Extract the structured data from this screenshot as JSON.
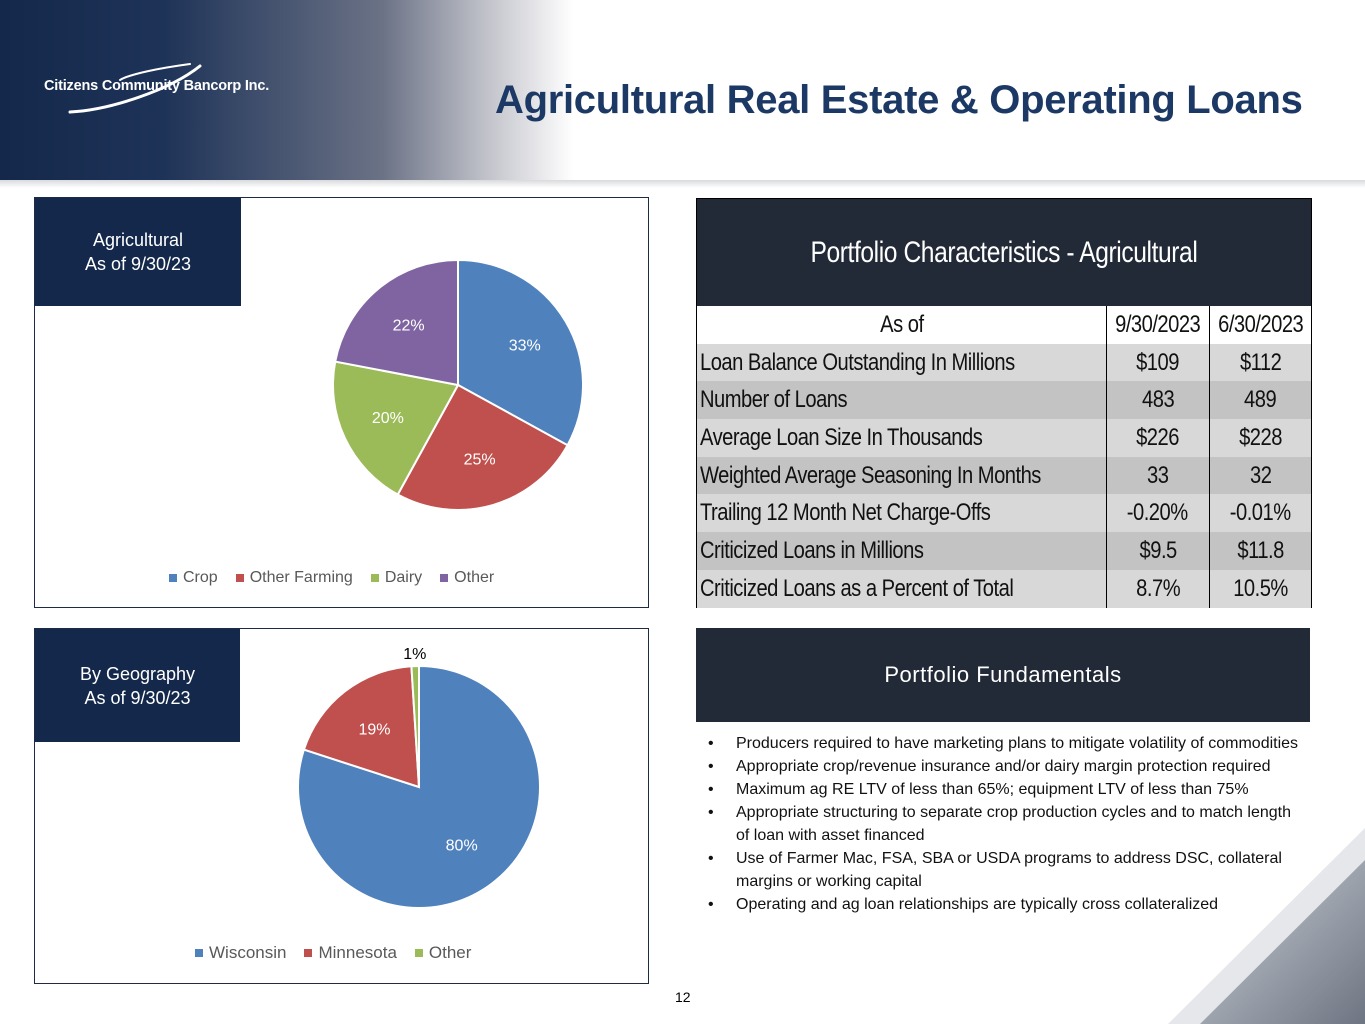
{
  "brand": {
    "logo_text": "Citizens Community Bancorp Inc."
  },
  "page": {
    "title": "Agricultural Real Estate & Operating Loans",
    "number": "12"
  },
  "colors": {
    "navy": "#13284a",
    "dark_panel": "#222a38",
    "title_blue": "#1c3864"
  },
  "chart_data": [
    {
      "type": "pie",
      "title": "Agricultural\nAs of 9/30/23",
      "title_lines": [
        "Agricultural",
        "As of 9/30/23"
      ],
      "categories": [
        "Crop",
        "Other Farming",
        "Dairy",
        "Other"
      ],
      "values": [
        33,
        25,
        20,
        22
      ],
      "labels": [
        "33%",
        "25%",
        "20%",
        "22%"
      ],
      "colors": [
        "#4f81bd",
        "#c0504d",
        "#9bbb59",
        "#8064a2"
      ],
      "legend": "bottom"
    },
    {
      "type": "pie",
      "title": "By Geography\nAs of 9/30/23",
      "title_lines": [
        "By Geography",
        "As of 9/30/23"
      ],
      "categories": [
        "Wisconsin",
        "Minnesota",
        "Other"
      ],
      "values": [
        80,
        19,
        1
      ],
      "labels": [
        "80%",
        "19%",
        "1%"
      ],
      "colors": [
        "#4f81bd",
        "#c0504d",
        "#9bbb59"
      ],
      "legend": "bottom"
    }
  ],
  "portfolio_table": {
    "title": "Portfolio Characteristics - Agricultural",
    "header": {
      "label": "As of",
      "col1": "9/30/2023",
      "col2": "6/30/2023"
    },
    "rows": [
      {
        "label": "Loan Balance Outstanding In Millions",
        "v1": "$109",
        "v2": "$112"
      },
      {
        "label": "Number of Loans",
        "v1": "483",
        "v2": "489"
      },
      {
        "label": "Average Loan Size In Thousands",
        "v1": "$226",
        "v2": "$228"
      },
      {
        "label": "Weighted Average Seasoning  In Months",
        "v1": "33",
        "v2": "32"
      },
      {
        "label": "Trailing 12 Month Net Charge-Offs",
        "v1": "-0.20%",
        "v2": "-0.01%"
      },
      {
        "label": "Criticized Loans in Millions",
        "v1": "$9.5",
        "v2": "$11.8"
      },
      {
        "label": "Criticized Loans as a Percent of Total",
        "v1": "8.7%",
        "v2": "10.5%"
      }
    ]
  },
  "fundamentals": {
    "title": "Portfolio Fundamentals",
    "bullets": [
      "Producers required to have marketing plans to mitigate volatility of commodities",
      "Appropriate crop/revenue insurance and/or dairy margin protection required",
      "Maximum ag RE LTV of less than 65%; equipment LTV of less than 75%",
      "Appropriate structuring to separate crop production cycles and to match length of loan with asset financed",
      "Use of Farmer Mac, FSA, SBA or USDA programs to address DSC, collateral margins or working capital",
      "Operating and ag loan relationships are typically cross collateralized"
    ]
  }
}
